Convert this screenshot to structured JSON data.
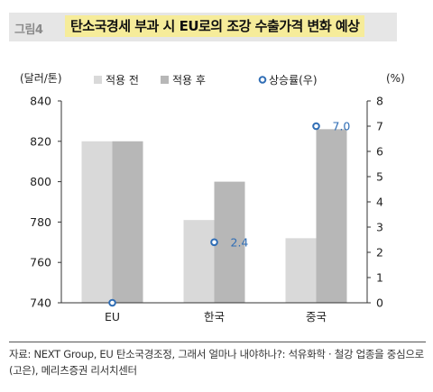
{
  "figure": {
    "label": "그림4",
    "title": "탄소국경세 부과 시 EU로의 조강 수출가격 변화 예상"
  },
  "chart_data": {
    "type": "bar",
    "categories": [
      "EU",
      "한국",
      "중국"
    ],
    "series": [
      {
        "name": "적용 전",
        "type": "bar",
        "axis": "left",
        "color": "#d9d9d9",
        "values": [
          820,
          781,
          772
        ]
      },
      {
        "name": "적용 후",
        "type": "bar",
        "axis": "left",
        "color": "#b7b7b7",
        "values": [
          820,
          800,
          826
        ]
      },
      {
        "name": "상승률(우)",
        "type": "scatter",
        "axis": "right",
        "color": "#2f6db5",
        "values": [
          0,
          2.4,
          7.0
        ],
        "labels": [
          "",
          "2.4",
          "7.0"
        ]
      }
    ],
    "ylabel_left": "(달러/톤)",
    "ylabel_right": "(%)",
    "ylim_left": [
      740,
      840
    ],
    "yticks_left": [
      740,
      760,
      780,
      800,
      820,
      840
    ],
    "ylim_right": [
      0,
      8
    ],
    "yticks_right": [
      0,
      1,
      2,
      3,
      4,
      5,
      6,
      7,
      8
    ],
    "grid": false,
    "legend_position": "top"
  },
  "source": "자료: NEXT Group, EU 탄소국경조정, 그래서 얼마나 내야하나?: 석유화학 · 철강 업종을 중심으로(고은), 메리츠증권 리서치센터"
}
